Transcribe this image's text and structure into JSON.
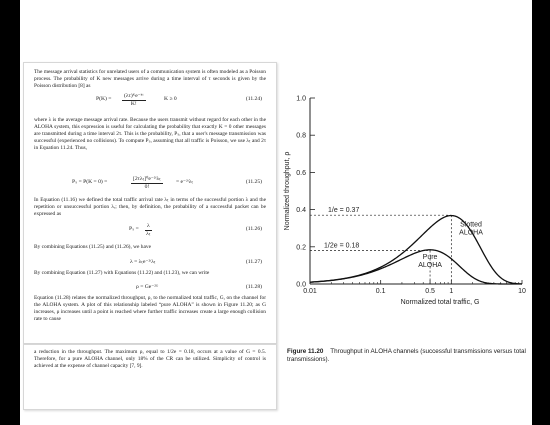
{
  "text": {
    "para1": "The message arrival statistics for unrelated users of a communication system is often modeled as a Poisson process. The probability of K new messages arrive during a time interval of τ seconds is given by the Poisson distribution [8] as",
    "eq1124_lhs": "P(K) =",
    "eq1124_num": "(λτ)ᴷe⁻ᵏᵗ",
    "eq1124_den": "K!",
    "eq1124_cond": "K ≥ 0",
    "eq1124_no": "(11.24)",
    "para2": "where λ is the average message arrival rate. Because the users transmit without regard for each other in the ALOHA system, this expression is useful for calculating the probability that exactly K = 0 other messages are transmitted during a time interval 2τ. This is the probability, Pₛ, that a user's message transmission was successful (experienced no collisions). To compute Pₛ, assuming that all traffic is Poisson, we use λₜ and 2τ in Equation 11.24. Thus,",
    "eq1125_lhs": "Pₛ = P(K = 0) =",
    "eq1125_num": "[2τλₜ]⁰e⁻²ᵗλₜ",
    "eq1125_den": "0!",
    "eq1125_rhs": "= e⁻²ᵗλₜ",
    "eq1125_no": "(11.25)",
    "para3": "In Equation (11.16) we defined the total traffic arrival rate λₜ in terms of the successful portion λ and the repetition or unsuccessful portion λᵣ; then, by definition, the probability of a successful packet can be expressed as",
    "eq1126_lhs": "Pₛ =",
    "eq1126_num": "λ",
    "eq1126_den": "λₜ",
    "eq1126_no": "(11.26)",
    "para4": "By combining Equations (11.25) and (11.26), we have",
    "eq1127": "λ = λₜe⁻²ᵗλₜ",
    "eq1127_no": "(11.27)",
    "para5": "By combining Equation (11.27) with Equations (11.22) and (11.23), we can write",
    "eq1128": "ρ = Ge⁻²ᴳ",
    "eq1128_no": "(11.28)",
    "para6": "Equation (11.28) relates the normalized throughput, ρ, to the normalized total traffic, G, on the channel for the ALOHA system. A plot of this relationship labeled “pure ALOHA” is shown in Figure 11.20; as G increases, ρ increases until a point is reached where further traffic increases create a large enough collision rate to cause",
    "para7": "a reduction in the throughput. The maximum ρ, equal to 1/2e = 0.18, occurs at a value of G = 0.5. Therefore, for a pure ALOHA channel, only 18% of the CR can be utilized. Simplicity of control is achieved at the expense of channel capacity [7, 9].",
    "fig_label": "Figure 11.20",
    "fig_caption": "Throughput in ALOHA channels (successful transmissions versus total transmissions)."
  },
  "chart_data": {
    "type": "line",
    "xscale": "log",
    "xlim": [
      0.01,
      10
    ],
    "ylim": [
      0,
      1.0
    ],
    "xticks": [
      "0.01",
      "0.1",
      "0.5",
      "1",
      "10"
    ],
    "xtick_values": [
      0.01,
      0.1,
      0.5,
      1,
      10
    ],
    "yticks": [
      "0.0",
      "0.2",
      "0.4",
      "0.6",
      "0.8",
      "1.0"
    ],
    "ytick_values": [
      0.0,
      0.2,
      0.4,
      0.6,
      0.8,
      1.0
    ],
    "xlabel": "Normalized total traffic, G",
    "ylabel": "Normalized throughput, ρ",
    "series": [
      {
        "name": "Pure ALOHA",
        "formula": "G·e^(−2G)",
        "max": {
          "x": 0.5,
          "y": 0.18
        }
      },
      {
        "name": "Slotted ALOHA",
        "formula": "G·e^(−G)",
        "max": {
          "x": 1,
          "y": 0.37
        }
      }
    ],
    "annotations": [
      {
        "text": "1/e = 0.37",
        "y": 0.37
      },
      {
        "text": "1/2e = 0.18",
        "y": 0.18
      }
    ],
    "series_labels": [
      "Slotted ALOHA",
      "Pure ALOHA"
    ]
  }
}
